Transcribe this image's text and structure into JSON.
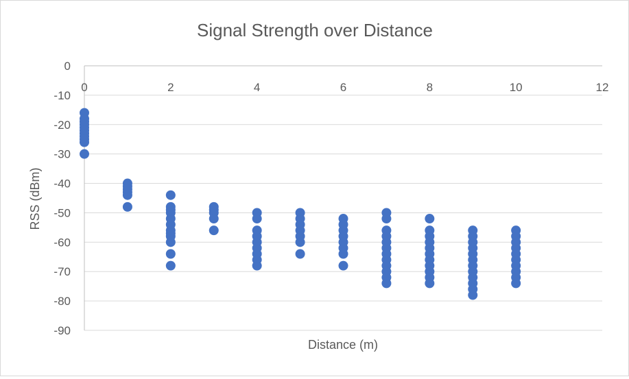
{
  "chart_data": {
    "type": "scatter",
    "title": "Signal Strength over Distance",
    "xlabel": "Distance (m)",
    "ylabel": "RSS (dBm)",
    "xlim": [
      0,
      12
    ],
    "ylim": [
      -90,
      0
    ],
    "x_ticks": [
      "0",
      "2",
      "4",
      "6",
      "8",
      "10",
      "12"
    ],
    "y_ticks": [
      "0",
      "-10",
      "-20",
      "-30",
      "-40",
      "-50",
      "-60",
      "-70",
      "-80",
      "-90"
    ],
    "x_axis_position": "top",
    "grid": true,
    "legend": "none",
    "marker_color": "#4472c4",
    "series": [
      {
        "points": [
          [
            0,
            -16
          ],
          [
            0,
            -18
          ],
          [
            0,
            -19
          ],
          [
            0,
            -20
          ],
          [
            0,
            -21
          ],
          [
            0,
            -22
          ],
          [
            0,
            -23
          ],
          [
            0,
            -24
          ],
          [
            0,
            -25
          ],
          [
            0,
            -26
          ],
          [
            0,
            -30
          ],
          [
            1,
            -40
          ],
          [
            1,
            -41
          ],
          [
            1,
            -42
          ],
          [
            1,
            -43
          ],
          [
            1,
            -44
          ],
          [
            1,
            -48
          ],
          [
            2,
            -44
          ],
          [
            2,
            -48
          ],
          [
            2,
            -49
          ],
          [
            2,
            -50
          ],
          [
            2,
            -52
          ],
          [
            2,
            -54
          ],
          [
            2,
            -56
          ],
          [
            2,
            -57
          ],
          [
            2,
            -58
          ],
          [
            2,
            -60
          ],
          [
            2,
            -64
          ],
          [
            2,
            -68
          ],
          [
            3,
            -48
          ],
          [
            3,
            -49
          ],
          [
            3,
            -50
          ],
          [
            3,
            -52
          ],
          [
            3,
            -56
          ],
          [
            4,
            -50
          ],
          [
            4,
            -52
          ],
          [
            4,
            -56
          ],
          [
            4,
            -58
          ],
          [
            4,
            -60
          ],
          [
            4,
            -62
          ],
          [
            4,
            -64
          ],
          [
            4,
            -66
          ],
          [
            4,
            -68
          ],
          [
            5,
            -50
          ],
          [
            5,
            -52
          ],
          [
            5,
            -54
          ],
          [
            5,
            -56
          ],
          [
            5,
            -58
          ],
          [
            5,
            -60
          ],
          [
            5,
            -64
          ],
          [
            6,
            -52
          ],
          [
            6,
            -54
          ],
          [
            6,
            -56
          ],
          [
            6,
            -58
          ],
          [
            6,
            -60
          ],
          [
            6,
            -62
          ],
          [
            6,
            -64
          ],
          [
            6,
            -68
          ],
          [
            7,
            -50
          ],
          [
            7,
            -52
          ],
          [
            7,
            -56
          ],
          [
            7,
            -58
          ],
          [
            7,
            -60
          ],
          [
            7,
            -62
          ],
          [
            7,
            -64
          ],
          [
            7,
            -66
          ],
          [
            7,
            -68
          ],
          [
            7,
            -70
          ],
          [
            7,
            -72
          ],
          [
            7,
            -74
          ],
          [
            8,
            -52
          ],
          [
            8,
            -56
          ],
          [
            8,
            -58
          ],
          [
            8,
            -60
          ],
          [
            8,
            -62
          ],
          [
            8,
            -64
          ],
          [
            8,
            -66
          ],
          [
            8,
            -68
          ],
          [
            8,
            -70
          ],
          [
            8,
            -72
          ],
          [
            8,
            -74
          ],
          [
            9,
            -56
          ],
          [
            9,
            -58
          ],
          [
            9,
            -60
          ],
          [
            9,
            -62
          ],
          [
            9,
            -64
          ],
          [
            9,
            -66
          ],
          [
            9,
            -68
          ],
          [
            9,
            -70
          ],
          [
            9,
            -72
          ],
          [
            9,
            -74
          ],
          [
            9,
            -76
          ],
          [
            9,
            -78
          ],
          [
            10,
            -56
          ],
          [
            10,
            -58
          ],
          [
            10,
            -60
          ],
          [
            10,
            -62
          ],
          [
            10,
            -64
          ],
          [
            10,
            -66
          ],
          [
            10,
            -68
          ],
          [
            10,
            -70
          ],
          [
            10,
            -72
          ],
          [
            10,
            -74
          ]
        ]
      }
    ]
  }
}
